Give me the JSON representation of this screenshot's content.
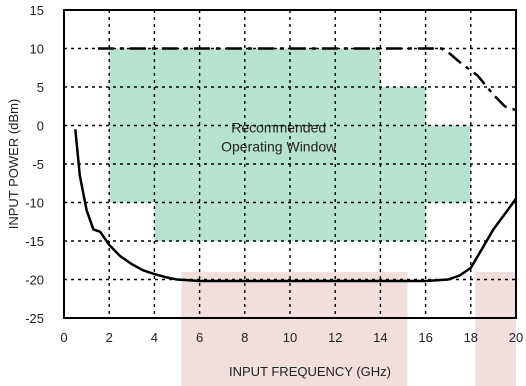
{
  "chart_data": {
    "type": "line",
    "title": "",
    "xlabel": "INPUT FREQUENCY (GHz)",
    "ylabel": "INPUT POWER (dBm)",
    "xlim": [
      0,
      20
    ],
    "ylim": [
      -25,
      15
    ],
    "x_ticks": [
      0,
      2,
      4,
      6,
      8,
      10,
      12,
      14,
      16,
      18,
      20
    ],
    "y_ticks": [
      15,
      10,
      5,
      0,
      -5,
      -10,
      -15,
      -20,
      -25
    ],
    "grid": true,
    "series": [
      {
        "style": "solid",
        "x": [
          0.5,
          0.7,
          1.0,
          1.3,
          1.6,
          2.0,
          2.5,
          3.0,
          3.5,
          4.0,
          4.5,
          5.0,
          6.0,
          8.0,
          10.0,
          12.0,
          14.0,
          16.0,
          17.0,
          17.5,
          18.0,
          18.5,
          19.0,
          19.5,
          20.0
        ],
        "y": [
          -0.5,
          -6.5,
          -11.0,
          -13.5,
          -13.8,
          -15.5,
          -17.0,
          -18.0,
          -18.8,
          -19.3,
          -19.7,
          -20.0,
          -20.2,
          -20.2,
          -20.2,
          -20.2,
          -20.2,
          -20.2,
          -20.0,
          -19.5,
          -18.5,
          -16.0,
          -13.5,
          -11.5,
          -9.5
        ]
      },
      {
        "style": "dashed",
        "x": [
          1.5,
          15.0,
          16.0,
          16.7,
          17.0,
          17.6,
          18.3,
          19.0,
          19.5,
          20.0
        ],
        "y": [
          10.0,
          10.0,
          10.0,
          10.0,
          9.5,
          8.0,
          6.5,
          4.0,
          2.5,
          2.0
        ]
      }
    ],
    "regions": [
      {
        "label": "Recommended Operating Window",
        "color": "#b7e2cf",
        "polygon": [
          [
            2,
            10
          ],
          [
            14,
            10
          ],
          [
            14,
            5
          ],
          [
            16,
            5
          ],
          [
            16,
            0
          ],
          [
            18,
            0
          ],
          [
            18,
            -10
          ],
          [
            16,
            -10
          ],
          [
            16,
            -15
          ],
          [
            4,
            -15
          ],
          [
            4,
            -10
          ],
          [
            2,
            -10
          ]
        ]
      }
    ],
    "bottom_bands": [
      {
        "color": "#f3dede",
        "x": [
          5.2,
          15.2
        ]
      },
      {
        "color": "#f3dede",
        "x": [
          18.2,
          20.0
        ]
      }
    ],
    "annotations": [
      {
        "text": [
          "Recommended",
          "Operating Window"
        ],
        "x": 9.5,
        "y": -2.2
      }
    ]
  }
}
